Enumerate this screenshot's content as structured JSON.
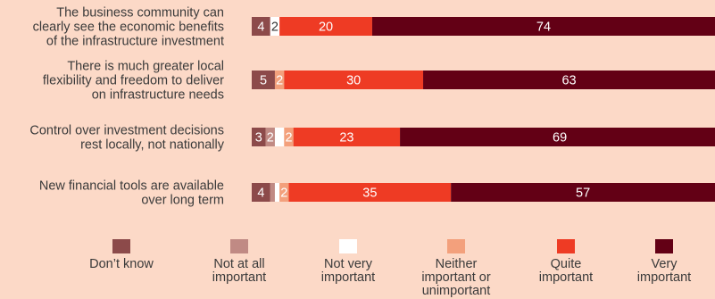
{
  "chart_data": {
    "type": "bar",
    "orientation": "horizontal",
    "stacked": true,
    "categories": [
      "The business community can clearly see the economic benefits of the infrastructure investment",
      "There is much greater local flexibility and freedom to deliver on infrastructure needs",
      "Control over investment decisions rest locally, not nationally",
      "New financial tools are available over long term"
    ],
    "category_lines": [
      [
        "The business community can",
        "clearly see the economic benefits",
        "of the infrastructure investment"
      ],
      [
        "There is much greater local",
        "flexibility and freedom to deliver",
        "on infrastructure needs"
      ],
      [
        "Control over investment decisions",
        "rest locally, not nationally"
      ],
      [
        "New financial tools are available",
        "over long term"
      ]
    ],
    "series": [
      {
        "name": "Don’t know",
        "color": "#8c4a4a",
        "values": [
          4,
          5,
          3,
          4
        ],
        "labels": [
          "4",
          "5",
          "3",
          "4"
        ]
      },
      {
        "name": "Not at all important",
        "color": "#c08a84",
        "values": [
          0,
          0,
          2,
          1
        ],
        "labels": [
          "",
          "",
          "2",
          ""
        ]
      },
      {
        "name": "Not very important",
        "color": "#ffffff",
        "values": [
          2,
          0,
          2,
          1
        ],
        "labels": [
          "2",
          "",
          "",
          ""
        ]
      },
      {
        "name": "Neither important or unimportant",
        "color": "#f3a07c",
        "values": [
          0,
          2,
          2,
          2
        ],
        "labels": [
          "",
          "2",
          "2",
          "2"
        ]
      },
      {
        "name": "Quite important",
        "color": "#ee3b24",
        "values": [
          20,
          30,
          23,
          35
        ],
        "labels": [
          "20",
          "30",
          "23",
          "35"
        ]
      },
      {
        "name": "Very important",
        "color": "#630015",
        "values": [
          74,
          63,
          69,
          57
        ],
        "labels": [
          "74",
          "63",
          "69",
          "57"
        ]
      }
    ],
    "legend": [
      {
        "name": "Don’t know",
        "color": "#8c4a4a",
        "lines": [
          "Don’t know"
        ]
      },
      {
        "name": "Not at all important",
        "color": "#c08a84",
        "lines": [
          "Not at all",
          "important"
        ]
      },
      {
        "name": "Not very important",
        "color": "#ffffff",
        "lines": [
          "Not very",
          "important"
        ]
      },
      {
        "name": "Neither important or unimportant",
        "color": "#f3a07c",
        "lines": [
          "Neither",
          "important or",
          "unimportant"
        ]
      },
      {
        "name": "Quite important",
        "color": "#ee3b24",
        "lines": [
          "Quite",
          "important"
        ]
      },
      {
        "name": "Very important",
        "color": "#630015",
        "lines": [
          "Very",
          "important"
        ]
      }
    ],
    "legend_position": "bottom",
    "xlim": [
      0,
      100
    ],
    "grid": false
  }
}
